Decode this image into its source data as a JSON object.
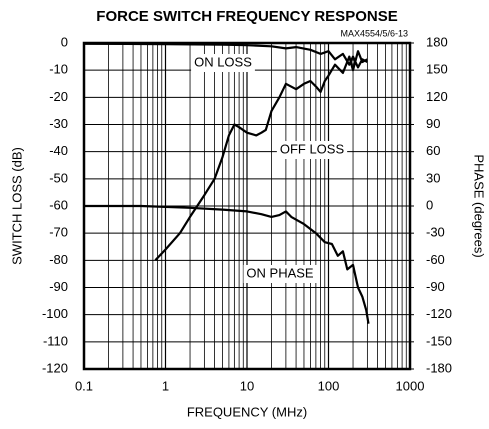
{
  "chart_data": {
    "type": "line",
    "title": "FORCE SWITCH FREQUENCY RESPONSE",
    "note": "MAX4554/5/6-13",
    "x_label": "FREQUENCY (MHz)",
    "y_label": "SWITCH LOSS (dB)",
    "y2_label": "PHASE (degrees)",
    "xlog": true,
    "grid": true,
    "xlim": [
      0.1,
      1000
    ],
    "xticks": [
      0.1,
      1,
      10,
      100,
      1000
    ],
    "ylim": [
      -120,
      0
    ],
    "yticks": [
      0,
      -10,
      -20,
      -30,
      -40,
      -50,
      -60,
      -70,
      -80,
      -90,
      -100,
      -110,
      -120
    ],
    "y2lim": [
      -180,
      180
    ],
    "y2ticks": [
      180,
      150,
      120,
      90,
      60,
      30,
      0,
      -30,
      -60,
      -90,
      -120,
      -150,
      -180
    ],
    "series": [
      {
        "name": "ON LOSS",
        "color": "#000000",
        "x": [
          0.1,
          1,
          5,
          10,
          20,
          30,
          40,
          60,
          80,
          100,
          120,
          150,
          180,
          200,
          230,
          260,
          300
        ],
        "values": [
          -0.3,
          -0.4,
          -0.6,
          -0.8,
          -1.2,
          -2,
          -1.5,
          -2.5,
          -4,
          -3,
          -6,
          -4,
          -8,
          -5,
          -9,
          -6,
          -7
        ]
      },
      {
        "name": "OFF LOSS",
        "color": "#000000",
        "x": [
          0.75,
          1,
          1.5,
          2,
          3,
          4,
          5,
          6,
          7,
          8,
          10,
          13,
          15,
          17,
          20,
          25,
          30,
          40,
          50,
          60,
          70,
          80,
          90,
          100,
          120,
          150,
          180,
          200,
          230,
          260,
          300
        ],
        "values": [
          -80,
          -76,
          -70,
          -64,
          -56,
          -50,
          -42,
          -34,
          -30,
          -31,
          -33,
          -34,
          -33,
          -32,
          -25,
          -20,
          -15,
          -17,
          -15,
          -14,
          -16,
          -18,
          -14,
          -12,
          -8,
          -11,
          -5,
          -10,
          -3,
          -7,
          -6
        ]
      },
      {
        "name": "ON PHASE",
        "color": "#000000",
        "axis": "y2",
        "x": [
          0.1,
          0.5,
          1,
          2,
          5,
          10,
          15,
          20,
          25,
          30,
          35,
          50,
          70,
          90,
          110,
          130,
          150,
          170,
          200,
          230,
          260,
          290,
          310
        ],
        "values": [
          0,
          0,
          -1,
          -2,
          -4,
          -6,
          -9,
          -12,
          -10,
          -6,
          -12,
          -20,
          -30,
          -40,
          -42,
          -55,
          -50,
          -70,
          -65,
          -90,
          -100,
          -115,
          -130
        ]
      }
    ]
  }
}
